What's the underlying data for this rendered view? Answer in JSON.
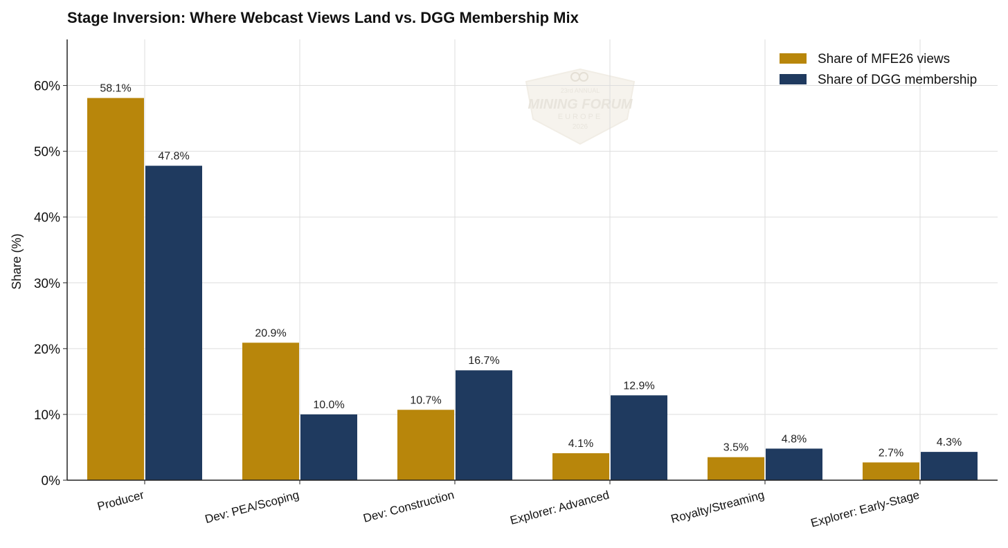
{
  "chart_data": {
    "type": "bar",
    "title": "Stage Inversion: Where Webcast Views Land vs. DGG Membership Mix",
    "ylabel": "Share (%)",
    "xlabel": "",
    "ylim": [
      0,
      67
    ],
    "yticks": [
      "0%",
      "10%",
      "20%",
      "30%",
      "40%",
      "50%",
      "60%"
    ],
    "grid": true,
    "legend_position": "top-right",
    "categories": [
      "Producer",
      "Dev: PEA/Scoping",
      "Dev: Construction",
      "Explorer: Advanced",
      "Royalty/Streaming",
      "Explorer: Early-Stage"
    ],
    "series": [
      {
        "name": "Share of MFE26 views",
        "color": "#b8860b",
        "values": [
          58.1,
          20.9,
          10.7,
          4.1,
          3.5,
          2.7
        ],
        "labels": [
          "58.1%",
          "20.9%",
          "10.7%",
          "4.1%",
          "3.5%",
          "2.7%"
        ]
      },
      {
        "name": "Share of DGG membership",
        "color": "#1f3a5f",
        "values": [
          47.8,
          10.0,
          16.7,
          12.9,
          4.8,
          4.3
        ],
        "labels": [
          "47.8%",
          "10.0%",
          "16.7%",
          "12.9%",
          "4.8%",
          "4.3%"
        ]
      }
    ]
  },
  "watermark": {
    "line1": "23rd ANNUAL",
    "line2": "MINING FORUM",
    "line3": "EUROPE",
    "line4": "2026"
  }
}
